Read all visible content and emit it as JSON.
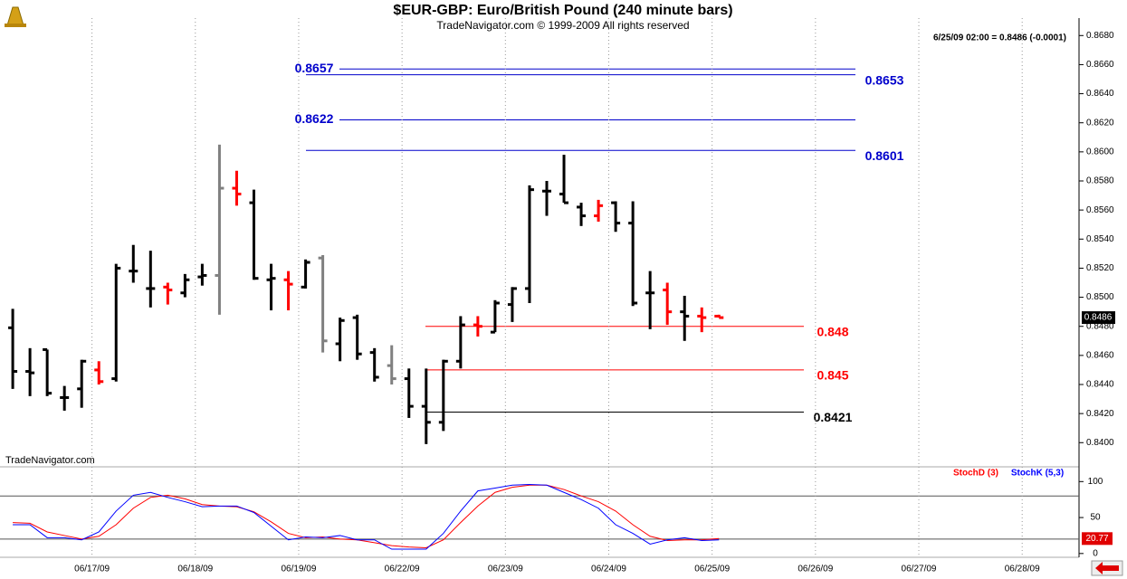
{
  "chart_data": [
    {
      "type": "ohlc",
      "title": "$EUR-GBP:  Euro/British Pound  (240 minute bars)",
      "subtitle": "TradeNavigator.com © 1999-2009 All rights reserved",
      "quote": "6/25/09 02:00 = 0.8486 (-0.0001)",
      "watermark": "TradeNavigator.com",
      "open": [
        0.8479,
        0.8449,
        0.8464,
        0.8431,
        0.8437,
        0.845,
        0.8444,
        0.8518,
        0.8506,
        0.8507,
        0.8503,
        0.8514,
        0.8515,
        0.8575,
        0.8565,
        0.8512,
        0.8512,
        0.8507,
        0.8527,
        0.8468,
        0.8486,
        0.8462,
        0.8453,
        0.8444,
        0.8425,
        0.8414,
        0.8456,
        0.8481,
        0.8476,
        0.8495,
        0.8506,
        0.8573,
        0.8571,
        0.8562,
        0.8556,
        0.8565,
        0.8551,
        0.8503,
        0.8505,
        0.849,
        0.8487,
        0.8487
      ],
      "high": [
        0.8492,
        0.8465,
        0.8464,
        0.8439,
        0.8457,
        0.8456,
        0.8523,
        0.8536,
        0.8532,
        0.851,
        0.8516,
        0.8523,
        0.8605,
        0.8587,
        0.8574,
        0.8523,
        0.8518,
        0.8526,
        0.8529,
        0.8486,
        0.8488,
        0.8465,
        0.8467,
        0.8451,
        0.8451,
        0.8457,
        0.8487,
        0.8487,
        0.8498,
        0.8507,
        0.8577,
        0.858,
        0.8598,
        0.8565,
        0.8567,
        0.8566,
        0.8566,
        0.8518,
        0.851,
        0.8501,
        0.8493,
        0.8488
      ],
      "low": [
        0.8437,
        0.8432,
        0.8432,
        0.8422,
        0.8424,
        0.844,
        0.8442,
        0.851,
        0.8493,
        0.8495,
        0.85,
        0.8508,
        0.8488,
        0.8563,
        0.8512,
        0.8491,
        0.8491,
        0.8506,
        0.8462,
        0.8456,
        0.8457,
        0.8442,
        0.844,
        0.8417,
        0.8399,
        0.8408,
        0.8451,
        0.8473,
        0.8476,
        0.8483,
        0.8496,
        0.8556,
        0.8565,
        0.8549,
        0.8552,
        0.8545,
        0.8494,
        0.8478,
        0.8481,
        0.847,
        0.8476,
        0.8486
      ],
      "close": [
        0.8449,
        0.8448,
        0.8434,
        0.8431,
        0.8456,
        0.8442,
        0.852,
        0.8518,
        0.8506,
        0.8505,
        0.8512,
        0.8515,
        0.8575,
        0.8571,
        0.8513,
        0.8513,
        0.8509,
        0.8524,
        0.847,
        0.8484,
        0.8461,
        0.8445,
        0.8444,
        0.8425,
        0.8414,
        0.8456,
        0.8481,
        0.848,
        0.8496,
        0.8506,
        0.8574,
        0.8573,
        0.8565,
        0.8556,
        0.8563,
        0.8551,
        0.8496,
        0.8503,
        0.849,
        0.8487,
        0.8486,
        0.8486
      ],
      "colors": [
        "#000000",
        "#000000",
        "#000000",
        "#000000",
        "#000000",
        "#ff0000",
        "#000000",
        "#000000",
        "#000000",
        "#ff0000",
        "#000000",
        "#000000",
        "#808080",
        "#ff0000",
        "#000000",
        "#000000",
        "#ff0000",
        "#000000",
        "#808080",
        "#000000",
        "#000000",
        "#000000",
        "#808080",
        "#000000",
        "#000000",
        "#000000",
        "#000000",
        "#ff0000",
        "#000000",
        "#000000",
        "#000000",
        "#000000",
        "#000000",
        "#000000",
        "#ff0000",
        "#000000",
        "#000000",
        "#000000",
        "#ff0000",
        "#000000",
        "#ff0000",
        "#ff0000"
      ],
      "levels": [
        {
          "value": 0.8657,
          "color": "#0000cc"
        },
        {
          "value": 0.8653,
          "color": "#0000cc"
        },
        {
          "value": 0.8622,
          "color": "#0000cc"
        },
        {
          "value": 0.8601,
          "color": "#0000cc"
        },
        {
          "value": 0.848,
          "color": "#ff0000"
        },
        {
          "value": 0.845,
          "color": "#ff0000"
        },
        {
          "value": 0.8421,
          "color": "#000000"
        }
      ],
      "last_price": 0.8486,
      "xlim": [
        -0.74,
        61.9
      ],
      "ylim": [
        0.8384,
        0.8692
      ],
      "yticks": [
        {
          "value": 0.84,
          "label": "0.8400"
        },
        {
          "value": 0.842,
          "label": "0.8420"
        },
        {
          "value": 0.844,
          "label": "0.8440"
        },
        {
          "value": 0.846,
          "label": "0.8460"
        },
        {
          "value": 0.848,
          "label": "0.8480"
        },
        {
          "value": 0.85,
          "label": "0.8500"
        },
        {
          "value": 0.852,
          "label": "0.8520"
        },
        {
          "value": 0.854,
          "label": "0.8540"
        },
        {
          "value": 0.856,
          "label": "0.8560"
        },
        {
          "value": 0.858,
          "label": "0.8580"
        },
        {
          "value": 0.86,
          "label": "0.8600"
        },
        {
          "value": 0.862,
          "label": "0.8620"
        },
        {
          "value": 0.864,
          "label": "0.8640"
        },
        {
          "value": 0.866,
          "label": "0.8660"
        },
        {
          "value": 0.868,
          "label": "0.8680"
        }
      ]
    },
    {
      "type": "line",
      "series": [
        {
          "name": "StochD (3)",
          "color": "#ff0000",
          "values": [
            43,
            42,
            30,
            25,
            20,
            24,
            40,
            63,
            78,
            81,
            76,
            68,
            66,
            65,
            58,
            44,
            28,
            22,
            23,
            20,
            19,
            15,
            11,
            9,
            8,
            19,
            43,
            66,
            85,
            92,
            95,
            95,
            89,
            80,
            72,
            59,
            40,
            24,
            18,
            19,
            19,
            20.77
          ]
        },
        {
          "name": "StochK (5,3)",
          "color": "#0000ff",
          "values": [
            40,
            40,
            22,
            22,
            19,
            30,
            59,
            81,
            85,
            78,
            72,
            65,
            66,
            66,
            57,
            38,
            19,
            23,
            22,
            25,
            19,
            19,
            6,
            6,
            6,
            28,
            59,
            87,
            91,
            95,
            96,
            95,
            85,
            75,
            63,
            40,
            28,
            13,
            19,
            22,
            18,
            19
          ]
        }
      ],
      "last_value": 20.77,
      "hlines": [
        80,
        20
      ],
      "xlim": [
        -0.74,
        61.9
      ],
      "ylim": [
        -4,
        118
      ],
      "yticks": [
        0,
        50,
        100
      ],
      "xticks": [
        {
          "value": 4.6,
          "label": "06/17/09"
        },
        {
          "value": 10.6,
          "label": "06/18/09"
        },
        {
          "value": 16.6,
          "label": "06/19/09"
        },
        {
          "value": 22.6,
          "label": "06/22/09"
        },
        {
          "value": 28.6,
          "label": "06/23/09"
        },
        {
          "value": 34.6,
          "label": "06/24/09"
        },
        {
          "value": 40.6,
          "label": "06/25/09"
        },
        {
          "value": 46.6,
          "label": "06/26/09"
        },
        {
          "value": 52.6,
          "label": "06/27/09"
        },
        {
          "value": 58.6,
          "label": "06/28/09"
        }
      ]
    }
  ]
}
